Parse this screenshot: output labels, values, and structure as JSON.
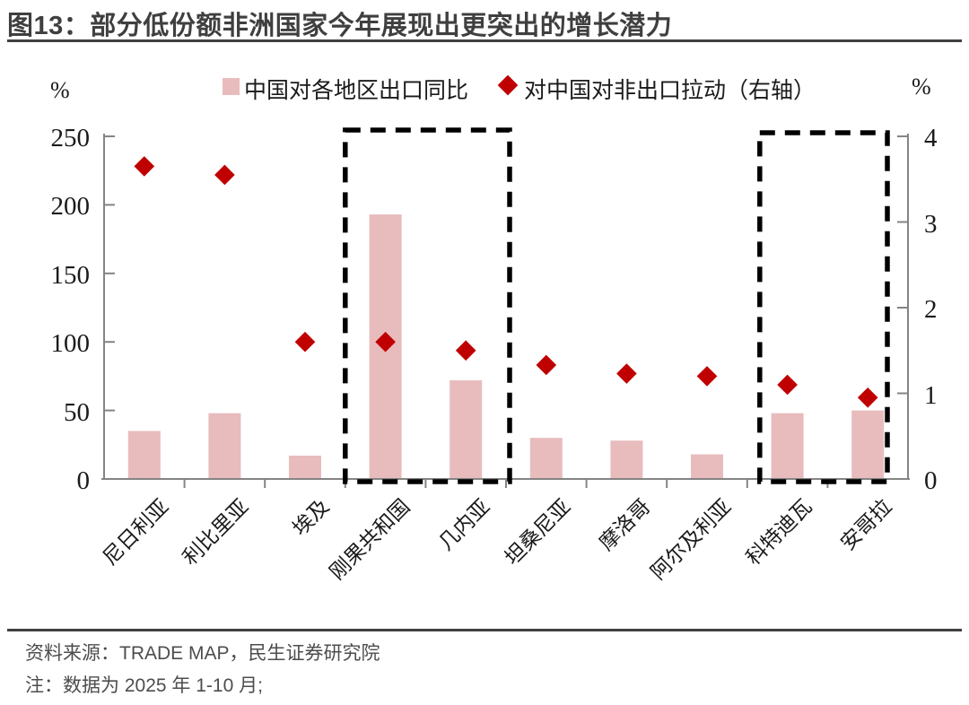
{
  "title": "图13：部分低份额非洲国家今年展现出更突出的增长潜力",
  "footer": {
    "source": "资料来源：TRADE MAP，民生证券研究院",
    "note": "注：数据为 2025 年 1-10 月;"
  },
  "colors": {
    "bar": "#E8BCBD",
    "diamond": "#C00000",
    "axis": "#848484",
    "highlight_box": "#000000",
    "title_rule": "#3F3F3F"
  },
  "chart_data": {
    "type": "bar",
    "categories": [
      "尼日利亚",
      "利比里亚",
      "埃及",
      "刚果共和国",
      "几内亚",
      "坦桑尼亚",
      "摩洛哥",
      "阿尔及利亚",
      "科特迪瓦",
      "安哥拉"
    ],
    "series": [
      {
        "name": "中国对各地区出口同比",
        "type": "bar",
        "axis": "left",
        "values": [
          35,
          48,
          17,
          193,
          72,
          30,
          28,
          18,
          48,
          50
        ]
      },
      {
        "name": "对中国对非出口拉动（右轴）",
        "type": "scatter",
        "marker": "diamond",
        "axis": "right",
        "values": [
          3.65,
          3.55,
          1.6,
          1.6,
          1.5,
          1.33,
          1.23,
          1.2,
          1.1,
          0.95
        ]
      }
    ],
    "left_axis": {
      "unit": "%",
      "min": 0,
      "max": 250,
      "ticks": [
        0,
        50,
        100,
        150,
        200,
        250
      ]
    },
    "right_axis": {
      "unit": "%",
      "min": 0,
      "max": 4,
      "ticks": [
        0,
        1,
        2,
        3,
        4
      ]
    },
    "highlight_boxes": [
      {
        "from": 3,
        "to": 4
      },
      {
        "from": 8,
        "to": 9
      }
    ],
    "grid": false,
    "legend_position": "top"
  }
}
